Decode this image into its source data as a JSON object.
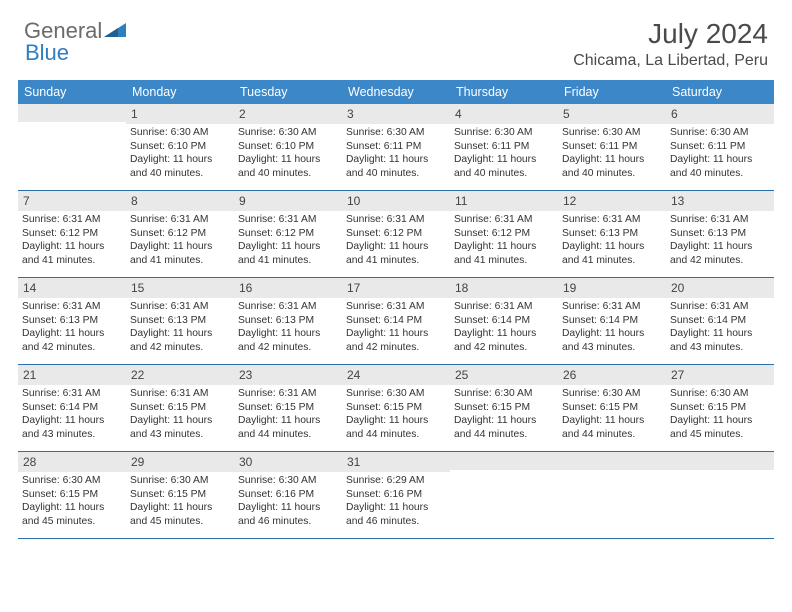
{
  "brand": {
    "part1": "General",
    "part2": "Blue"
  },
  "title": "July 2024",
  "location": "Chicama, La Libertad, Peru",
  "colors": {
    "header_bg": "#3b87c8",
    "header_text": "#ffffff",
    "daynum_bg": "#e9e9e9",
    "border": "#2f6ea8",
    "brand_gray": "#6b6b6b",
    "brand_blue": "#2f7ec0"
  },
  "day_headers": [
    "Sunday",
    "Monday",
    "Tuesday",
    "Wednesday",
    "Thursday",
    "Friday",
    "Saturday"
  ],
  "weeks": [
    [
      {
        "day": "",
        "sunrise": "",
        "sunset": "",
        "daylight": ""
      },
      {
        "day": "1",
        "sunrise": "Sunrise: 6:30 AM",
        "sunset": "Sunset: 6:10 PM",
        "daylight": "Daylight: 11 hours and 40 minutes."
      },
      {
        "day": "2",
        "sunrise": "Sunrise: 6:30 AM",
        "sunset": "Sunset: 6:10 PM",
        "daylight": "Daylight: 11 hours and 40 minutes."
      },
      {
        "day": "3",
        "sunrise": "Sunrise: 6:30 AM",
        "sunset": "Sunset: 6:11 PM",
        "daylight": "Daylight: 11 hours and 40 minutes."
      },
      {
        "day": "4",
        "sunrise": "Sunrise: 6:30 AM",
        "sunset": "Sunset: 6:11 PM",
        "daylight": "Daylight: 11 hours and 40 minutes."
      },
      {
        "day": "5",
        "sunrise": "Sunrise: 6:30 AM",
        "sunset": "Sunset: 6:11 PM",
        "daylight": "Daylight: 11 hours and 40 minutes."
      },
      {
        "day": "6",
        "sunrise": "Sunrise: 6:30 AM",
        "sunset": "Sunset: 6:11 PM",
        "daylight": "Daylight: 11 hours and 40 minutes."
      }
    ],
    [
      {
        "day": "7",
        "sunrise": "Sunrise: 6:31 AM",
        "sunset": "Sunset: 6:12 PM",
        "daylight": "Daylight: 11 hours and 41 minutes."
      },
      {
        "day": "8",
        "sunrise": "Sunrise: 6:31 AM",
        "sunset": "Sunset: 6:12 PM",
        "daylight": "Daylight: 11 hours and 41 minutes."
      },
      {
        "day": "9",
        "sunrise": "Sunrise: 6:31 AM",
        "sunset": "Sunset: 6:12 PM",
        "daylight": "Daylight: 11 hours and 41 minutes."
      },
      {
        "day": "10",
        "sunrise": "Sunrise: 6:31 AM",
        "sunset": "Sunset: 6:12 PM",
        "daylight": "Daylight: 11 hours and 41 minutes."
      },
      {
        "day": "11",
        "sunrise": "Sunrise: 6:31 AM",
        "sunset": "Sunset: 6:12 PM",
        "daylight": "Daylight: 11 hours and 41 minutes."
      },
      {
        "day": "12",
        "sunrise": "Sunrise: 6:31 AM",
        "sunset": "Sunset: 6:13 PM",
        "daylight": "Daylight: 11 hours and 41 minutes."
      },
      {
        "day": "13",
        "sunrise": "Sunrise: 6:31 AM",
        "sunset": "Sunset: 6:13 PM",
        "daylight": "Daylight: 11 hours and 42 minutes."
      }
    ],
    [
      {
        "day": "14",
        "sunrise": "Sunrise: 6:31 AM",
        "sunset": "Sunset: 6:13 PM",
        "daylight": "Daylight: 11 hours and 42 minutes."
      },
      {
        "day": "15",
        "sunrise": "Sunrise: 6:31 AM",
        "sunset": "Sunset: 6:13 PM",
        "daylight": "Daylight: 11 hours and 42 minutes."
      },
      {
        "day": "16",
        "sunrise": "Sunrise: 6:31 AM",
        "sunset": "Sunset: 6:13 PM",
        "daylight": "Daylight: 11 hours and 42 minutes."
      },
      {
        "day": "17",
        "sunrise": "Sunrise: 6:31 AM",
        "sunset": "Sunset: 6:14 PM",
        "daylight": "Daylight: 11 hours and 42 minutes."
      },
      {
        "day": "18",
        "sunrise": "Sunrise: 6:31 AM",
        "sunset": "Sunset: 6:14 PM",
        "daylight": "Daylight: 11 hours and 42 minutes."
      },
      {
        "day": "19",
        "sunrise": "Sunrise: 6:31 AM",
        "sunset": "Sunset: 6:14 PM",
        "daylight": "Daylight: 11 hours and 43 minutes."
      },
      {
        "day": "20",
        "sunrise": "Sunrise: 6:31 AM",
        "sunset": "Sunset: 6:14 PM",
        "daylight": "Daylight: 11 hours and 43 minutes."
      }
    ],
    [
      {
        "day": "21",
        "sunrise": "Sunrise: 6:31 AM",
        "sunset": "Sunset: 6:14 PM",
        "daylight": "Daylight: 11 hours and 43 minutes."
      },
      {
        "day": "22",
        "sunrise": "Sunrise: 6:31 AM",
        "sunset": "Sunset: 6:15 PM",
        "daylight": "Daylight: 11 hours and 43 minutes."
      },
      {
        "day": "23",
        "sunrise": "Sunrise: 6:31 AM",
        "sunset": "Sunset: 6:15 PM",
        "daylight": "Daylight: 11 hours and 44 minutes."
      },
      {
        "day": "24",
        "sunrise": "Sunrise: 6:30 AM",
        "sunset": "Sunset: 6:15 PM",
        "daylight": "Daylight: 11 hours and 44 minutes."
      },
      {
        "day": "25",
        "sunrise": "Sunrise: 6:30 AM",
        "sunset": "Sunset: 6:15 PM",
        "daylight": "Daylight: 11 hours and 44 minutes."
      },
      {
        "day": "26",
        "sunrise": "Sunrise: 6:30 AM",
        "sunset": "Sunset: 6:15 PM",
        "daylight": "Daylight: 11 hours and 44 minutes."
      },
      {
        "day": "27",
        "sunrise": "Sunrise: 6:30 AM",
        "sunset": "Sunset: 6:15 PM",
        "daylight": "Daylight: 11 hours and 45 minutes."
      }
    ],
    [
      {
        "day": "28",
        "sunrise": "Sunrise: 6:30 AM",
        "sunset": "Sunset: 6:15 PM",
        "daylight": "Daylight: 11 hours and 45 minutes."
      },
      {
        "day": "29",
        "sunrise": "Sunrise: 6:30 AM",
        "sunset": "Sunset: 6:15 PM",
        "daylight": "Daylight: 11 hours and 45 minutes."
      },
      {
        "day": "30",
        "sunrise": "Sunrise: 6:30 AM",
        "sunset": "Sunset: 6:16 PM",
        "daylight": "Daylight: 11 hours and 46 minutes."
      },
      {
        "day": "31",
        "sunrise": "Sunrise: 6:29 AM",
        "sunset": "Sunset: 6:16 PM",
        "daylight": "Daylight: 11 hours and 46 minutes."
      },
      {
        "day": "",
        "sunrise": "",
        "sunset": "",
        "daylight": ""
      },
      {
        "day": "",
        "sunrise": "",
        "sunset": "",
        "daylight": ""
      },
      {
        "day": "",
        "sunrise": "",
        "sunset": "",
        "daylight": ""
      }
    ]
  ]
}
